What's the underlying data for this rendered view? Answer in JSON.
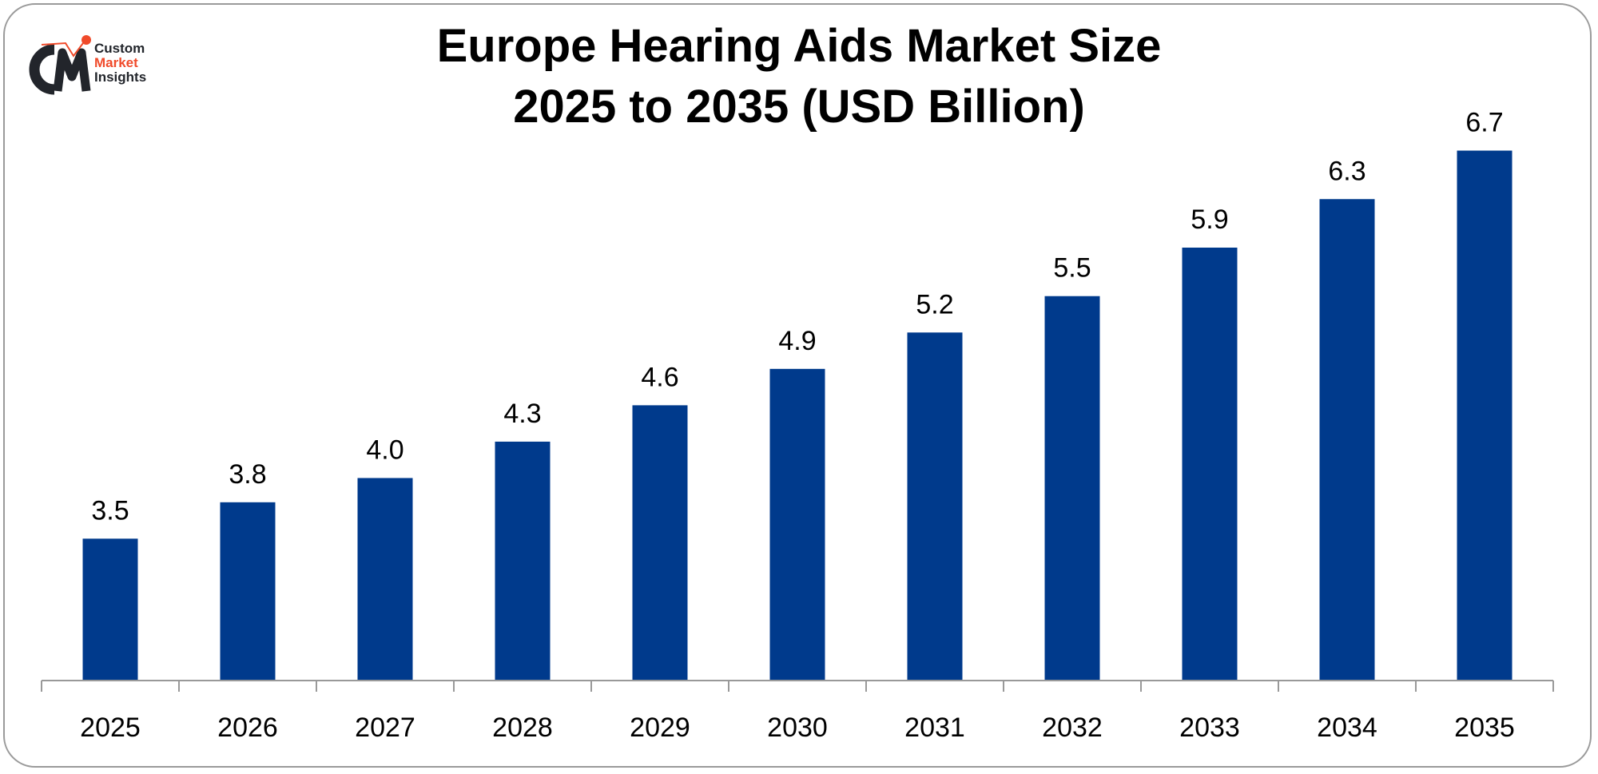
{
  "logo": {
    "line1": "Custom",
    "line2": "Market",
    "line3": "Insights",
    "colors": {
      "dark": "#22252b",
      "accent": "#f04a2a"
    }
  },
  "chart_data": {
    "type": "bar",
    "title_line1": "Europe Hearing Aids Market Size",
    "title_line2": "2025 to 2035 (USD Billion)",
    "categories": [
      "2025",
      "2026",
      "2027",
      "2028",
      "2029",
      "2030",
      "2031",
      "2032",
      "2033",
      "2034",
      "2035"
    ],
    "values": [
      3.5,
      3.8,
      4.0,
      4.3,
      4.6,
      4.9,
      5.2,
      5.5,
      5.9,
      6.3,
      6.7
    ],
    "value_labels": [
      "3.5",
      "3.8",
      "4.0",
      "4.3",
      "4.6",
      "4.9",
      "5.2",
      "5.5",
      "5.9",
      "6.3",
      "6.7"
    ],
    "xlabel": "",
    "ylabel": "",
    "ylim": [
      2.33,
      7.0
    ],
    "grid": false,
    "legend": "none",
    "bar_color": "#003a8c"
  }
}
